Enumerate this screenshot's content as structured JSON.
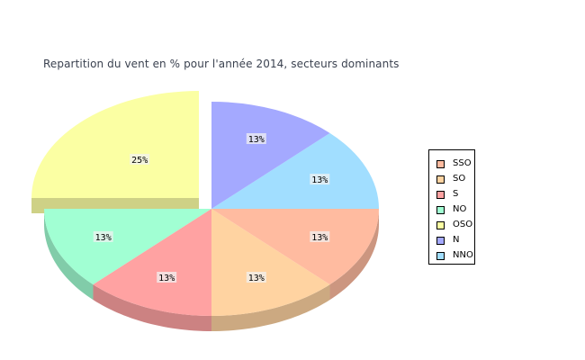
{
  "chart_data": {
    "type": "pie",
    "title": "Repartition du vent en % pour l'année 2014, secteurs dominants",
    "legend_position": "right",
    "categories": [
      "SSO",
      "SO",
      "S",
      "NO",
      "OSO",
      "N",
      "NNO"
    ],
    "values": [
      12.5,
      12.5,
      12.5,
      12.5,
      25,
      12.5,
      12.5
    ],
    "labels": [
      "13%",
      "13%",
      "13%",
      "13%",
      "25%",
      "13%",
      "13%"
    ],
    "colors": [
      "#ffbba0",
      "#ffd3a1",
      "#ffa2a2",
      "#a1ffd3",
      "#fbffa3",
      "#a4a9ff",
      "#a1deff"
    ],
    "exploded": "OSO",
    "style": "3d"
  }
}
